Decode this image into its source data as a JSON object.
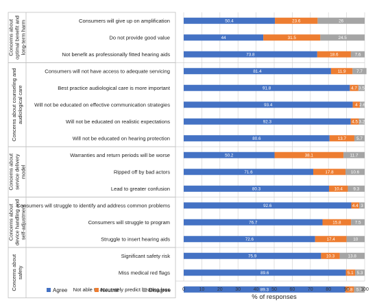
{
  "chart_data": {
    "type": "bar",
    "orientation": "horizontal",
    "stacked": true,
    "xlabel": "% of responses",
    "xlim": [
      0,
      100
    ],
    "xticks": [
      0,
      10,
      20,
      30,
      40,
      50,
      60,
      70,
      80,
      90,
      100
    ],
    "legend_position": "bottom-left",
    "series": [
      {
        "name": "Agree",
        "color": "#4472c4"
      },
      {
        "name": "Neutral",
        "color": "#ed7d31"
      },
      {
        "name": "Disagree",
        "color": "#a5a5a5"
      }
    ],
    "groups": [
      {
        "label": "Concerns about optimal benefit and long-term harm",
        "label_lines": [
          "Concerns about",
          "optimal benefit and",
          "long-term harm"
        ],
        "items": [
          {
            "label": "Consumers will give up on amplification",
            "values": [
              50.4,
              23.6,
              26
            ]
          },
          {
            "label": "Do not provide good value",
            "values": [
              44,
              31.5,
              24.5
            ]
          },
          {
            "label": "Not benefit as professionally fitted hearing aids",
            "values": [
              73.8,
              18.6,
              7.6
            ]
          }
        ]
      },
      {
        "label": "Concerns about counseling and audiological care",
        "label_lines": [
          "Concerns about counseling and",
          "audiological care"
        ],
        "items": [
          {
            "label": "Consumers will not have access to adequate servicing",
            "values": [
              81.4,
              11.9,
              7.7
            ]
          },
          {
            "label": "Best practice audiological care is more important",
            "values": [
              91.8,
              4.7,
              3.5
            ]
          },
          {
            "label": "Will not be educated on effective communication strategies",
            "values": [
              93.4,
              4,
              2.6
            ]
          },
          {
            "label": "Will not be educated on realistic expectations",
            "values": [
              92.3,
              4.5,
              3.2
            ]
          },
          {
            "label": "Will not be educated on hearing protection",
            "values": [
              80.6,
              13.7,
              5.7
            ]
          }
        ]
      },
      {
        "label": "Concerns about service delivery model",
        "label_lines": [
          "Concerns about",
          "service delivery",
          "model"
        ],
        "items": [
          {
            "label": "Warranties and return periods will be worse",
            "values": [
              50.2,
              38.1,
              11.7
            ]
          },
          {
            "label": "Ripped off by bad actors",
            "values": [
              71.6,
              17.8,
              10.6
            ]
          },
          {
            "label": "Lead to greater confusion",
            "values": [
              80.3,
              10.4,
              9.3
            ]
          }
        ]
      },
      {
        "label": "Concerns about device handling and self-adjustment",
        "label_lines": [
          "Concerns about",
          "device handling and",
          "self-adjustment"
        ],
        "items": [
          {
            "label": "Consumers will struggle to identify and address common problems",
            "values": [
              92.6,
              4.4,
              3
            ]
          },
          {
            "label": "Consumers will struggle to program",
            "values": [
              76.7,
              15.8,
              7.5
            ]
          },
          {
            "label": "Struggle to insert hearing aids",
            "values": [
              72.6,
              17.4,
              10
            ]
          }
        ]
      },
      {
        "label": "Concerns about safety",
        "label_lines": [
          "Concerns about",
          "safety"
        ],
        "items": [
          {
            "label": "Significant safety risk",
            "values": [
              75.9,
              10.3,
              13.8
            ]
          },
          {
            "label": "Miss medical red flags",
            "values": [
              89.6,
              5.1,
              5.3
            ]
          },
          {
            "label": "Not able to accurately predict hearing loss",
            "values": [
              89.3,
              4.8,
              5.9
            ]
          }
        ]
      }
    ]
  }
}
